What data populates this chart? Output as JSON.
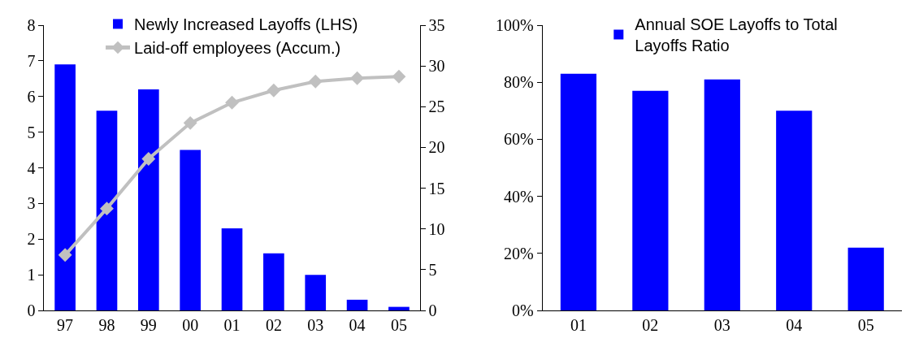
{
  "chart_data": [
    {
      "type": "bar",
      "categories": [
        "97",
        "98",
        "99",
        "00",
        "01",
        "02",
        "03",
        "04",
        "05"
      ],
      "series": [
        {
          "name": "Newly Increased Layoffs (LHS)",
          "type": "bar",
          "color": "#0000ff",
          "values": [
            6.9,
            5.6,
            6.2,
            4.5,
            2.3,
            1.6,
            1.0,
            0.3,
            0.1
          ]
        },
        {
          "name": "Laid-off employees (Accum.)",
          "type": "line",
          "axis": "y2",
          "color": "#c0c0c0",
          "marker": "diamond",
          "values": [
            6.8,
            12.5,
            18.6,
            23.0,
            25.5,
            27.0,
            28.1,
            28.5,
            28.7
          ]
        }
      ],
      "ylim": [
        0,
        8
      ],
      "yticks": [
        0,
        1,
        2,
        3,
        4,
        5,
        6,
        7,
        8
      ],
      "y2lim": [
        0,
        35
      ],
      "y2ticks": [
        0,
        5,
        10,
        15,
        20,
        25,
        30,
        35
      ],
      "legend": "top"
    },
    {
      "type": "bar",
      "categories": [
        "01",
        "02",
        "03",
        "04",
        "05"
      ],
      "series": [
        {
          "name": "Annual SOE Layoffs to Total Layoffs Ratio",
          "color": "#0000ff",
          "values": [
            83,
            77,
            81,
            70,
            22
          ]
        }
      ],
      "ylim": [
        0,
        100
      ],
      "yticks": [
        {
          "value": 0,
          "label": "0%"
        },
        {
          "value": 20,
          "label": "20%"
        },
        {
          "value": 40,
          "label": "40%"
        },
        {
          "value": 60,
          "label": "60%"
        },
        {
          "value": 80,
          "label": "80%"
        },
        {
          "value": 100,
          "label": "100%"
        }
      ],
      "legend": "top"
    }
  ]
}
